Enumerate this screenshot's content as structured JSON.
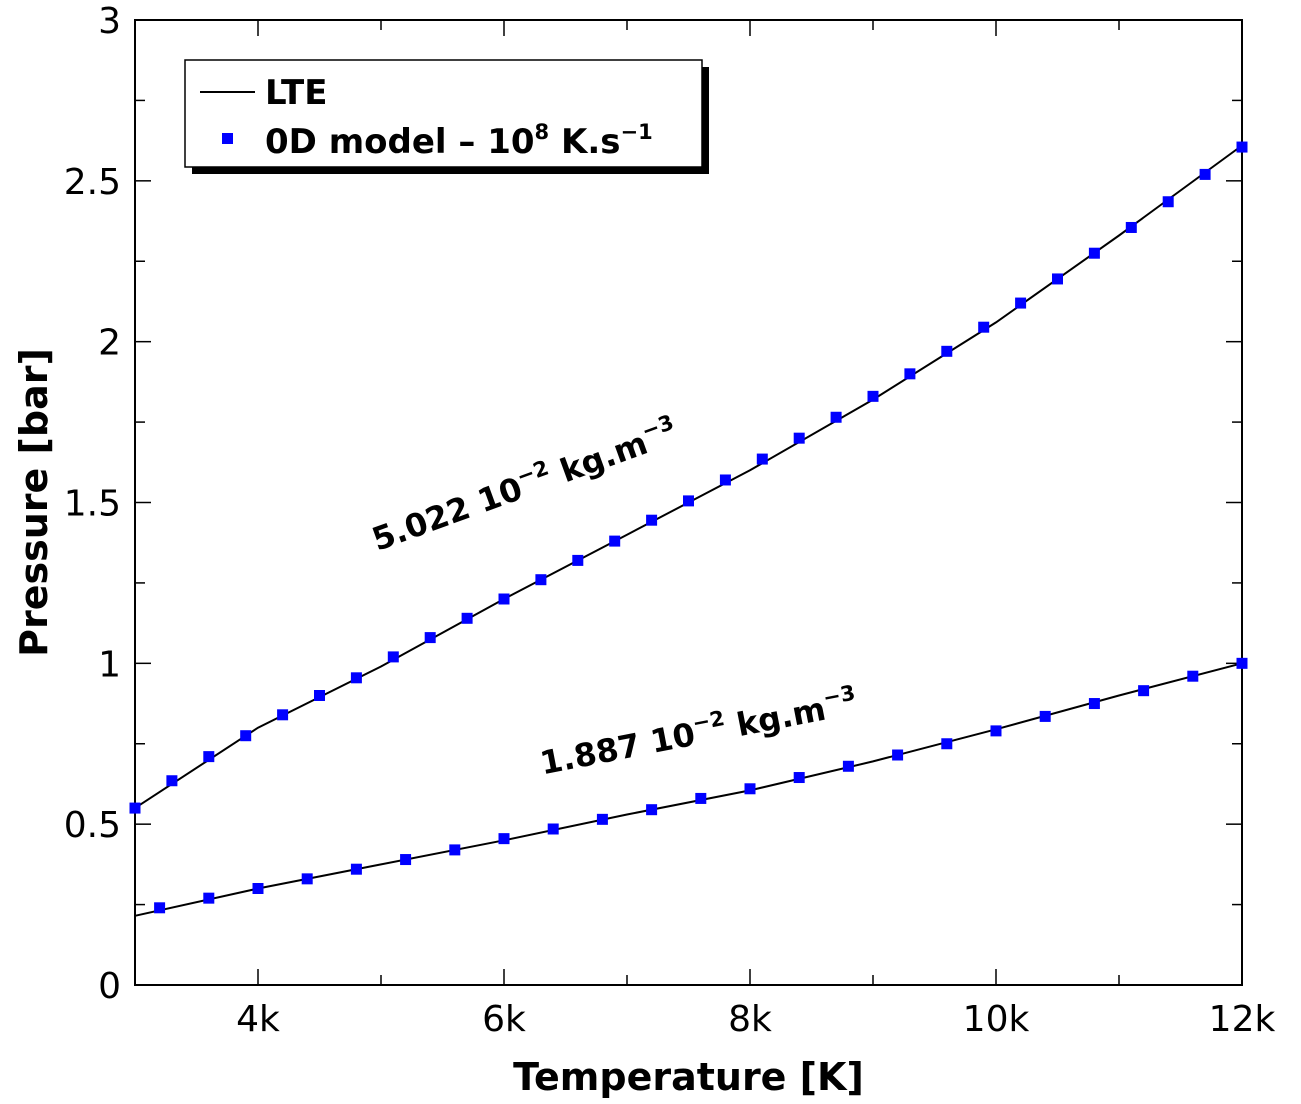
{
  "chart_data": {
    "type": "line",
    "xlabel": "Temperature [K]",
    "ylabel": "Pressure [bar]",
    "xlim": [
      3000,
      12000
    ],
    "ylim": [
      0,
      3
    ],
    "x_ticks": [
      4000,
      6000,
      8000,
      10000,
      12000
    ],
    "x_tick_labels": [
      "4k",
      "6k",
      "8k",
      "10k",
      "12k"
    ],
    "y_ticks": [
      0,
      0.5,
      1,
      1.5,
      2,
      2.5,
      3
    ],
    "y_tick_labels": [
      "0",
      "0.5",
      "1",
      "1.5",
      "2",
      "2.5",
      "3"
    ],
    "grid": false,
    "legend_position": "top-left",
    "legend": [
      {
        "label": "LTE",
        "style": "line",
        "color": "#000000"
      },
      {
        "label": "0D model – 10",
        "sup": "8",
        "label_tail": " K.s",
        "sup_tail": "−1",
        "style": "square-marker",
        "color": "#0000ff"
      }
    ],
    "series": [
      {
        "name": "LTE",
        "curve": "5.022 10⁻² kg.m⁻³",
        "x": [
          3000,
          4000,
          5000,
          6000,
          7000,
          8000,
          9000,
          10000,
          11000,
          12000
        ],
        "y": [
          0.55,
          0.8,
          0.99,
          1.2,
          1.4,
          1.6,
          1.82,
          2.06,
          2.33,
          2.61
        ]
      },
      {
        "name": "LTE",
        "curve": "1.887 10⁻² kg.m⁻³",
        "x": [
          3000,
          4000,
          5000,
          6000,
          7000,
          8000,
          9000,
          10000,
          11000,
          12000
        ],
        "y": [
          0.215,
          0.3,
          0.375,
          0.45,
          0.53,
          0.605,
          0.695,
          0.795,
          0.9,
          1.0
        ]
      },
      {
        "name": "0D model – 10⁸ K.s⁻¹",
        "curve": "5.022 10⁻² kg.m⁻³",
        "x": [
          3000,
          3300,
          3600,
          3900,
          4200,
          4500,
          4800,
          5100,
          5400,
          5700,
          6000,
          6300,
          6600,
          6900,
          7200,
          7500,
          7800,
          8100,
          8400,
          8700,
          9000,
          9300,
          9600,
          9900,
          10200,
          10500,
          10800,
          11100,
          11400,
          11700,
          12000
        ],
        "y": [
          0.55,
          0.635,
          0.71,
          0.775,
          0.84,
          0.9,
          0.955,
          1.02,
          1.08,
          1.14,
          1.2,
          1.26,
          1.32,
          1.38,
          1.445,
          1.505,
          1.57,
          1.635,
          1.7,
          1.765,
          1.83,
          1.9,
          1.97,
          2.045,
          2.12,
          2.195,
          2.275,
          2.355,
          2.435,
          2.52,
          2.605
        ]
      },
      {
        "name": "0D model – 10⁸ K.s⁻¹",
        "curve": "1.887 10⁻² kg.m⁻³",
        "x": [
          3200,
          3600,
          4000,
          4400,
          4800,
          5200,
          5600,
          6000,
          6400,
          6800,
          7200,
          7600,
          8000,
          8400,
          8800,
          9200,
          9600,
          10000,
          10400,
          10800,
          11200,
          11600,
          12000
        ],
        "y": [
          0.24,
          0.27,
          0.3,
          0.33,
          0.36,
          0.39,
          0.42,
          0.455,
          0.485,
          0.515,
          0.545,
          0.58,
          0.61,
          0.645,
          0.68,
          0.715,
          0.75,
          0.79,
          0.835,
          0.875,
          0.915,
          0.96,
          1.0
        ]
      }
    ],
    "annotations": [
      {
        "prefix": "5.022 10",
        "sup": "−2",
        "mid": " kg.m",
        "sup2": "−3",
        "x": 6200,
        "y": 1.52,
        "angle_deg": -20
      },
      {
        "prefix": "1.887 10",
        "sup": "−2",
        "mid": " kg.m",
        "sup2": "−3",
        "x": 7600,
        "y": 0.75,
        "angle_deg": -11
      }
    ]
  }
}
